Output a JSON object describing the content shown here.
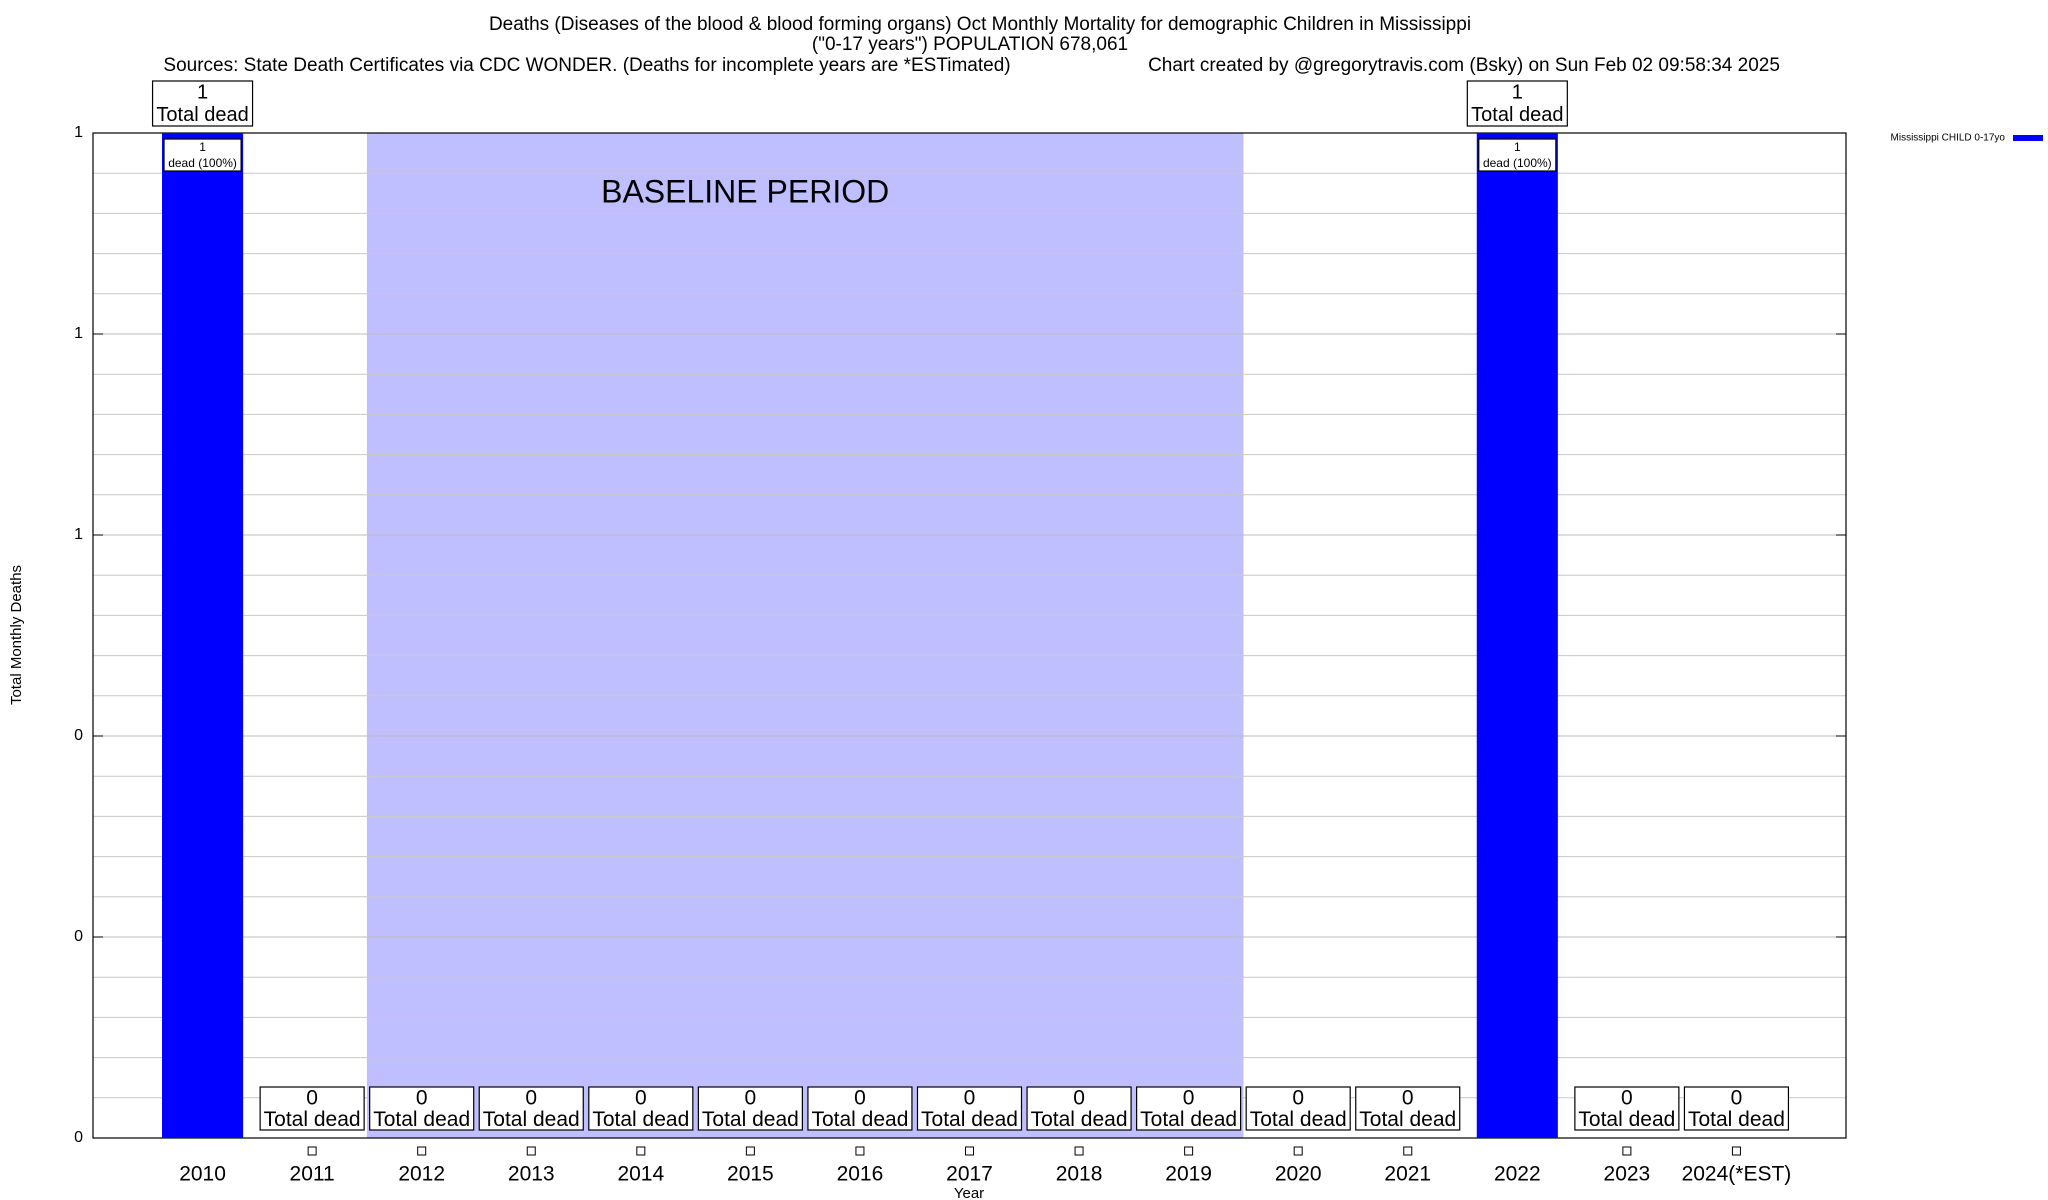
{
  "chart_data": {
    "type": "bar",
    "title": "Deaths (Diseases of the blood & blood forming organs) Oct Monthly Mortality for demographic Children in Mississippi",
    "subtitle": "(\"0-17 years\") POPULATION 678,061",
    "sources": "Sources: State Death Certificates via CDC WONDER. (Deaths for incomplete years are *ESTimated)",
    "credit": "Chart created by @gregorytravis.com (Bsky) on Sun Feb 02 09:58:34 2025",
    "x_label": "Year",
    "y_label": "Total Monthly Deaths",
    "categories": [
      "2010",
      "2011",
      "2012",
      "2013",
      "2014",
      "2015",
      "2016",
      "2017",
      "2018",
      "2019",
      "2020",
      "2021",
      "2022",
      "2023",
      "2024(*EST)"
    ],
    "series": [
      {
        "name": "Mississippi CHILD 0-17yo",
        "color": "#0000ff",
        "values": [
          1,
          0,
          0,
          0,
          0,
          0,
          0,
          0,
          0,
          0,
          0,
          0,
          1,
          0,
          0
        ],
        "inner_labels": [
          "dead (100%)",
          null,
          null,
          null,
          null,
          null,
          null,
          null,
          null,
          null,
          null,
          null,
          "dead (100%)",
          null,
          null
        ]
      }
    ],
    "total_label": "Total dead",
    "baseline": {
      "label": "BASELINE PERIOD",
      "start": "2012",
      "end": "2019",
      "color": "#bfbfff"
    },
    "ylim": [
      0,
      1
    ],
    "yticks": [
      {
        "value": 0,
        "label": "0"
      },
      {
        "value": 0.2,
        "label": "0"
      },
      {
        "value": 0.4,
        "label": "0"
      },
      {
        "value": 0.6,
        "label": "1"
      },
      {
        "value": 0.8,
        "label": "1"
      },
      {
        "value": 1,
        "label": "1"
      }
    ],
    "minor_yticks": [
      0.04,
      0.08,
      0.12,
      0.16,
      0.24,
      0.28,
      0.32,
      0.36,
      0.44,
      0.48,
      0.52,
      0.56,
      0.64,
      0.68,
      0.72,
      0.76,
      0.84,
      0.88,
      0.92,
      0.96
    ],
    "grid": true,
    "legend": "top-right"
  }
}
